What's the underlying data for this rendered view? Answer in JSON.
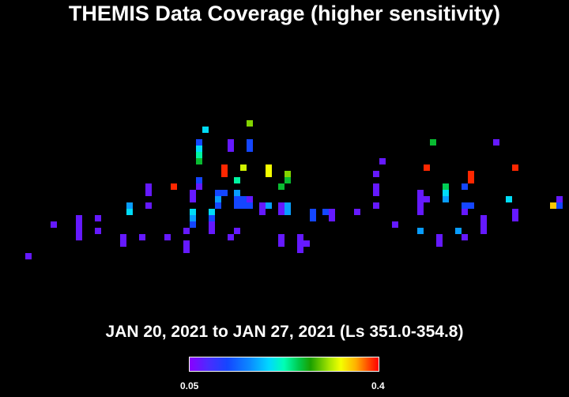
{
  "title": "THEMIS Data Coverage (higher sensitivity)",
  "subtitle": "JAN 20, 2021 to JAN 27, 2021 (Ls 351.0-354.8)",
  "colorbar": {
    "min_label": "0.05",
    "max_label": "0.4"
  },
  "chart_data": {
    "type": "heatmap",
    "title": "THEMIS Data Coverage (higher sensitivity)",
    "subtitle": "JAN 20, 2021 to JAN 27, 2021 (Ls 351.0-354.8)",
    "value_range": [
      0.05,
      0.4
    ],
    "cell_grid": {
      "columns": 90,
      "rows": 62
    },
    "cells": [
      {
        "c": 4,
        "r": 40,
        "v": 0.07
      },
      {
        "c": 8,
        "r": 35,
        "v": 0.07
      },
      {
        "c": 12,
        "r": 34,
        "v": 0.07
      },
      {
        "c": 12,
        "r": 35,
        "v": 0.07
      },
      {
        "c": 12,
        "r": 36,
        "v": 0.07
      },
      {
        "c": 12,
        "r": 37,
        "v": 0.07
      },
      {
        "c": 15,
        "r": 34,
        "v": 0.07
      },
      {
        "c": 15,
        "r": 36,
        "v": 0.07
      },
      {
        "c": 19,
        "r": 37,
        "v": 0.07
      },
      {
        "c": 19,
        "r": 38,
        "v": 0.07
      },
      {
        "c": 20,
        "r": 32,
        "v": 0.17
      },
      {
        "c": 20,
        "r": 33,
        "v": 0.2
      },
      {
        "c": 22,
        "r": 37,
        "v": 0.07
      },
      {
        "c": 23,
        "r": 29,
        "v": 0.07
      },
      {
        "c": 23,
        "r": 30,
        "v": 0.07
      },
      {
        "c": 23,
        "r": 32,
        "v": 0.07
      },
      {
        "c": 26,
        "r": 37,
        "v": 0.07
      },
      {
        "c": 27,
        "r": 29,
        "v": 0.39
      },
      {
        "c": 29,
        "r": 36,
        "v": 0.07
      },
      {
        "c": 29,
        "r": 38,
        "v": 0.07
      },
      {
        "c": 29,
        "r": 39,
        "v": 0.07
      },
      {
        "c": 30,
        "r": 30,
        "v": 0.07
      },
      {
        "c": 30,
        "r": 31,
        "v": 0.07
      },
      {
        "c": 30,
        "r": 33,
        "v": 0.2
      },
      {
        "c": 30,
        "r": 34,
        "v": 0.17
      },
      {
        "c": 30,
        "r": 35,
        "v": 0.12
      },
      {
        "c": 31,
        "r": 22,
        "v": 0.12
      },
      {
        "c": 31,
        "r": 23,
        "v": 0.2
      },
      {
        "c": 31,
        "r": 24,
        "v": 0.23
      },
      {
        "c": 31,
        "r": 25,
        "v": 0.26
      },
      {
        "c": 31,
        "r": 28,
        "v": 0.12
      },
      {
        "c": 31,
        "r": 29,
        "v": 0.07
      },
      {
        "c": 32,
        "r": 20,
        "v": 0.2
      },
      {
        "c": 33,
        "r": 33,
        "v": 0.2
      },
      {
        "c": 33,
        "r": 34,
        "v": 0.12
      },
      {
        "c": 33,
        "r": 35,
        "v": 0.07
      },
      {
        "c": 33,
        "r": 36,
        "v": 0.07
      },
      {
        "c": 34,
        "r": 30,
        "v": 0.12
      },
      {
        "c": 34,
        "r": 31,
        "v": 0.17
      },
      {
        "c": 34,
        "r": 32,
        "v": 0.12
      },
      {
        "c": 35,
        "r": 30,
        "v": 0.12
      },
      {
        "c": 35,
        "r": 26,
        "v": 0.39
      },
      {
        "c": 35,
        "r": 27,
        "v": 0.39
      },
      {
        "c": 36,
        "r": 22,
        "v": 0.07
      },
      {
        "c": 36,
        "r": 23,
        "v": 0.07
      },
      {
        "c": 36,
        "r": 37,
        "v": 0.07
      },
      {
        "c": 37,
        "r": 28,
        "v": 0.23
      },
      {
        "c": 37,
        "r": 30,
        "v": 0.17
      },
      {
        "c": 37,
        "r": 31,
        "v": 0.12
      },
      {
        "c": 37,
        "r": 32,
        "v": 0.12
      },
      {
        "c": 37,
        "r": 36,
        "v": 0.07
      },
      {
        "c": 38,
        "r": 26,
        "v": 0.32
      },
      {
        "c": 38,
        "r": 31,
        "v": 0.12
      },
      {
        "c": 38,
        "r": 32,
        "v": 0.12
      },
      {
        "c": 39,
        "r": 19,
        "v": 0.3
      },
      {
        "c": 39,
        "r": 22,
        "v": 0.12
      },
      {
        "c": 39,
        "r": 23,
        "v": 0.12
      },
      {
        "c": 39,
        "r": 31,
        "v": 0.07
      },
      {
        "c": 39,
        "r": 32,
        "v": 0.12
      },
      {
        "c": 41,
        "r": 32,
        "v": 0.07
      },
      {
        "c": 41,
        "r": 33,
        "v": 0.07
      },
      {
        "c": 42,
        "r": 26,
        "v": 0.33
      },
      {
        "c": 42,
        "r": 27,
        "v": 0.33
      },
      {
        "c": 42,
        "r": 32,
        "v": 0.17
      },
      {
        "c": 44,
        "r": 29,
        "v": 0.26
      },
      {
        "c": 44,
        "r": 32,
        "v": 0.07
      },
      {
        "c": 44,
        "r": 33,
        "v": 0.07
      },
      {
        "c": 44,
        "r": 37,
        "v": 0.07
      },
      {
        "c": 44,
        "r": 38,
        "v": 0.07
      },
      {
        "c": 45,
        "r": 27,
        "v": 0.3
      },
      {
        "c": 45,
        "r": 28,
        "v": 0.26
      },
      {
        "c": 45,
        "r": 32,
        "v": 0.17
      },
      {
        "c": 45,
        "r": 33,
        "v": 0.17
      },
      {
        "c": 47,
        "r": 37,
        "v": 0.07
      },
      {
        "c": 47,
        "r": 38,
        "v": 0.07
      },
      {
        "c": 47,
        "r": 39,
        "v": 0.07
      },
      {
        "c": 48,
        "r": 38,
        "v": 0.07
      },
      {
        "c": 49,
        "r": 33,
        "v": 0.12
      },
      {
        "c": 49,
        "r": 34,
        "v": 0.12
      },
      {
        "c": 51,
        "r": 33,
        "v": 0.12
      },
      {
        "c": 52,
        "r": 33,
        "v": 0.07
      },
      {
        "c": 52,
        "r": 34,
        "v": 0.07
      },
      {
        "c": 56,
        "r": 33,
        "v": 0.07
      },
      {
        "c": 59,
        "r": 27,
        "v": 0.07
      },
      {
        "c": 59,
        "r": 29,
        "v": 0.07
      },
      {
        "c": 59,
        "r": 30,
        "v": 0.07
      },
      {
        "c": 59,
        "r": 32,
        "v": 0.07
      },
      {
        "c": 60,
        "r": 25,
        "v": 0.07
      },
      {
        "c": 62,
        "r": 35,
        "v": 0.07
      },
      {
        "c": 66,
        "r": 30,
        "v": 0.07
      },
      {
        "c": 66,
        "r": 31,
        "v": 0.07
      },
      {
        "c": 66,
        "r": 32,
        "v": 0.07
      },
      {
        "c": 66,
        "r": 33,
        "v": 0.07
      },
      {
        "c": 66,
        "r": 36,
        "v": 0.17
      },
      {
        "c": 67,
        "r": 26,
        "v": 0.39
      },
      {
        "c": 67,
        "r": 31,
        "v": 0.07
      },
      {
        "c": 68,
        "r": 22,
        "v": 0.26
      },
      {
        "c": 69,
        "r": 37,
        "v": 0.07
      },
      {
        "c": 69,
        "r": 38,
        "v": 0.07
      },
      {
        "c": 70,
        "r": 29,
        "v": 0.25
      },
      {
        "c": 70,
        "r": 30,
        "v": 0.2
      },
      {
        "c": 70,
        "r": 31,
        "v": 0.17
      },
      {
        "c": 72,
        "r": 36,
        "v": 0.17
      },
      {
        "c": 73,
        "r": 29,
        "v": 0.12
      },
      {
        "c": 73,
        "r": 32,
        "v": 0.12
      },
      {
        "c": 73,
        "r": 33,
        "v": 0.07
      },
      {
        "c": 73,
        "r": 37,
        "v": 0.07
      },
      {
        "c": 74,
        "r": 27,
        "v": 0.39
      },
      {
        "c": 74,
        "r": 28,
        "v": 0.39
      },
      {
        "c": 74,
        "r": 32,
        "v": 0.12
      },
      {
        "c": 76,
        "r": 34,
        "v": 0.07
      },
      {
        "c": 76,
        "r": 35,
        "v": 0.07
      },
      {
        "c": 76,
        "r": 36,
        "v": 0.07
      },
      {
        "c": 78,
        "r": 22,
        "v": 0.07
      },
      {
        "c": 80,
        "r": 31,
        "v": 0.2
      },
      {
        "c": 81,
        "r": 26,
        "v": 0.39
      },
      {
        "c": 81,
        "r": 33,
        "v": 0.07
      },
      {
        "c": 81,
        "r": 34,
        "v": 0.07
      },
      {
        "c": 87,
        "r": 32,
        "v": 0.35
      },
      {
        "c": 88,
        "r": 31,
        "v": 0.07
      },
      {
        "c": 88,
        "r": 32,
        "v": 0.12
      }
    ]
  }
}
